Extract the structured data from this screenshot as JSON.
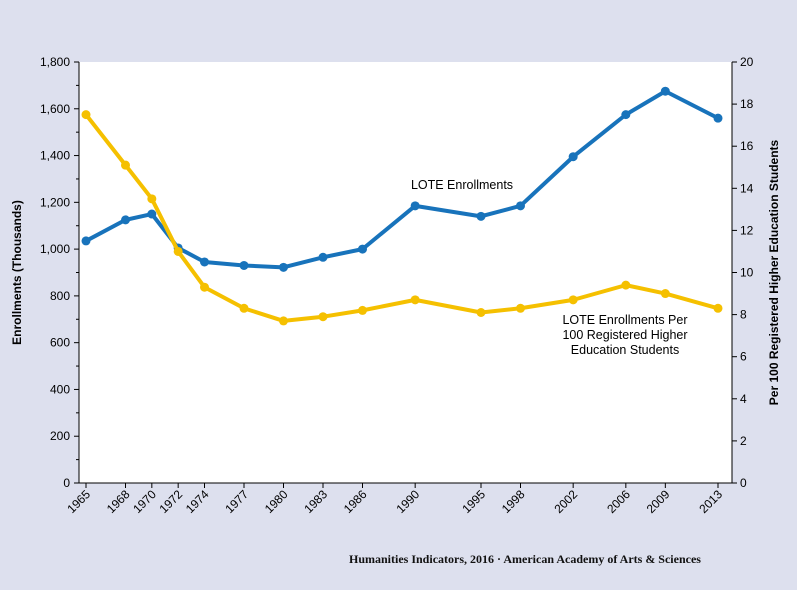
{
  "chart_data": {
    "type": "line",
    "x": [
      "1965",
      "1968",
      "1970",
      "1972",
      "1974",
      "1977",
      "1980",
      "1983",
      "1986",
      "1990",
      "1995",
      "1998",
      "2002",
      "2006",
      "2009",
      "2013"
    ],
    "ylabel_left": "Enrollments (Thousands)",
    "ylabel_right": "Per 100 Registered Higher Education Students",
    "ylim_left": [
      0,
      1800
    ],
    "ylim_right": [
      0,
      20
    ],
    "yticks_left": [
      "0",
      "200",
      "400",
      "600",
      "800",
      "1,000",
      "1,200",
      "1,400",
      "1,600",
      "1,800"
    ],
    "yticks_right": [
      "0",
      "2",
      "4",
      "6",
      "8",
      "10",
      "12",
      "14",
      "16",
      "18",
      "20"
    ],
    "grid": false,
    "series": [
      {
        "name": "LOTE Enrollments",
        "axis": "left",
        "color": "#1873bb",
        "values": [
          1035,
          1125,
          1150,
          1005,
          945,
          930,
          922,
          965,
          1000,
          1185,
          1140,
          1185,
          1395,
          1575,
          1675,
          1560
        ]
      },
      {
        "name": "LOTE Enrollments Per 100 Registered Higher Education Students",
        "name_lines": [
          "LOTE Enrollments Per",
          "100 Registered Higher",
          "Education Students"
        ],
        "axis": "right",
        "color": "#f5c000",
        "values": [
          17.5,
          15.1,
          13.5,
          11.0,
          9.3,
          8.3,
          7.7,
          7.9,
          8.2,
          8.7,
          8.1,
          8.3,
          8.7,
          9.4,
          9.0,
          8.3
        ]
      }
    ]
  },
  "footer": "Humanities Indicators, 2016 · American Academy of Arts & Sciences"
}
